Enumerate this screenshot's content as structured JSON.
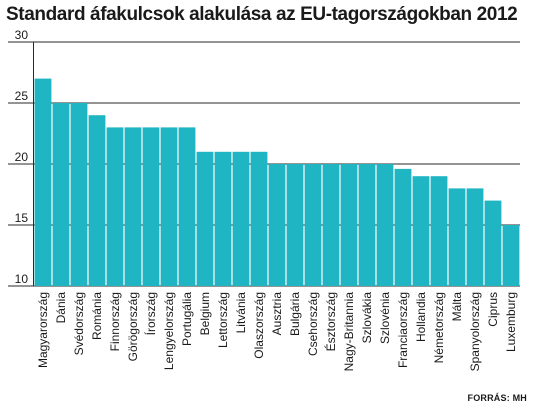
{
  "chart_data": {
    "type": "bar",
    "title": "Standard áfakulcsok alakulása az EU-tagországokban 2012",
    "xlabel": "",
    "ylabel": "",
    "ylim": [
      10,
      30
    ],
    "yticks": [
      "10",
      "15",
      "20",
      "25",
      "30"
    ],
    "grid": true,
    "bar_color": "#1fb5c3",
    "categories": [
      "Magyarország",
      "Dánia",
      "Svédország",
      "Románia",
      "Finnország",
      "Görögország",
      "Írország",
      "Lengyelország",
      "Portugália",
      "Belgium",
      "Lettország",
      "Litvánia",
      "Olaszország",
      "Ausztria",
      "Bulgária",
      "Csehország",
      "Észtország",
      "Nagy-Britannia",
      "Szlovákia",
      "Szlovénia",
      "Franciaország",
      "Hollandia",
      "Németország",
      "Málta",
      "Spanyolország",
      "Ciprus",
      "Luxemburg"
    ],
    "values": [
      27,
      25,
      25,
      24,
      23,
      23,
      23,
      23,
      23,
      21,
      21,
      21,
      21,
      20,
      20,
      20,
      20,
      20,
      20,
      20,
      19.6,
      19,
      19,
      18,
      18,
      17,
      15
    ]
  },
  "source": "FORRÁS: MH"
}
